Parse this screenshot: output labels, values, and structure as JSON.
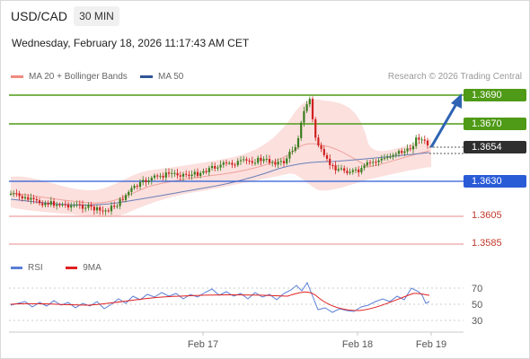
{
  "header": {
    "symbol": "USD/CAD",
    "timeframe": "30 MIN"
  },
  "datetime": "Wednesday, February 18, 2026 11:17:43 AM CET",
  "legend": {
    "bb_label": "MA 20 + Bollinger Bands",
    "ma50_label": "MA 50",
    "bb_color": "#f08b80",
    "ma50_color": "#2f5597"
  },
  "credit": "Research © 2026 Trading Central",
  "rsi_legend": {
    "rsi_label": "RSI",
    "ma_label": "9MA",
    "rsi_color": "#5b7fd6",
    "ma_color": "#e02020"
  },
  "levels": {
    "r2": "1.3690",
    "r1": "1.3670",
    "current": "1.3654",
    "s1": "1.3630",
    "s2": "1.3605",
    "s3": "1.3585"
  },
  "rsi_ticks": [
    "70",
    "50",
    "30"
  ],
  "x_axis": [
    "Feb 17",
    "Feb 18",
    "Feb 19"
  ],
  "colors": {
    "resistance": "#4f9a16",
    "support": "#2a5bd7",
    "sub_support": "#e06a6a",
    "current_box": "#2f2f2f",
    "arrow": "#2e63b3",
    "bull": "#3a7d1e",
    "bear": "#d02020"
  }
}
